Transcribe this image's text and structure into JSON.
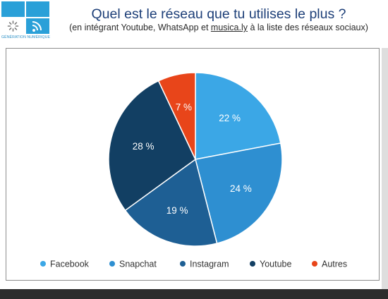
{
  "logo": {
    "caption": "GÉNÉRATION NUMÉRIQUE"
  },
  "header": {
    "title": "Quel est le réseau que tu utilises le plus ?",
    "subtitle_before": "(en intégrant Youtube, WhatsApp et ",
    "subtitle_link": "musica.ly",
    "subtitle_after": " à la liste des réseaux sociaux)"
  },
  "chart_data": {
    "type": "pie",
    "title": "",
    "categories": [
      "Facebook",
      "Snapchat",
      "Instagram",
      "Youtube",
      "Autres"
    ],
    "values": [
      22,
      24,
      19,
      28,
      7
    ],
    "labels": [
      "22 %",
      "24 %",
      "19 %",
      "28 %",
      "7 %"
    ],
    "colors": [
      "#3ba7e6",
      "#2e8fd1",
      "#1e5f94",
      "#123f63",
      "#e8451a"
    ],
    "legend_position": "bottom",
    "start": "top, clockwise"
  }
}
